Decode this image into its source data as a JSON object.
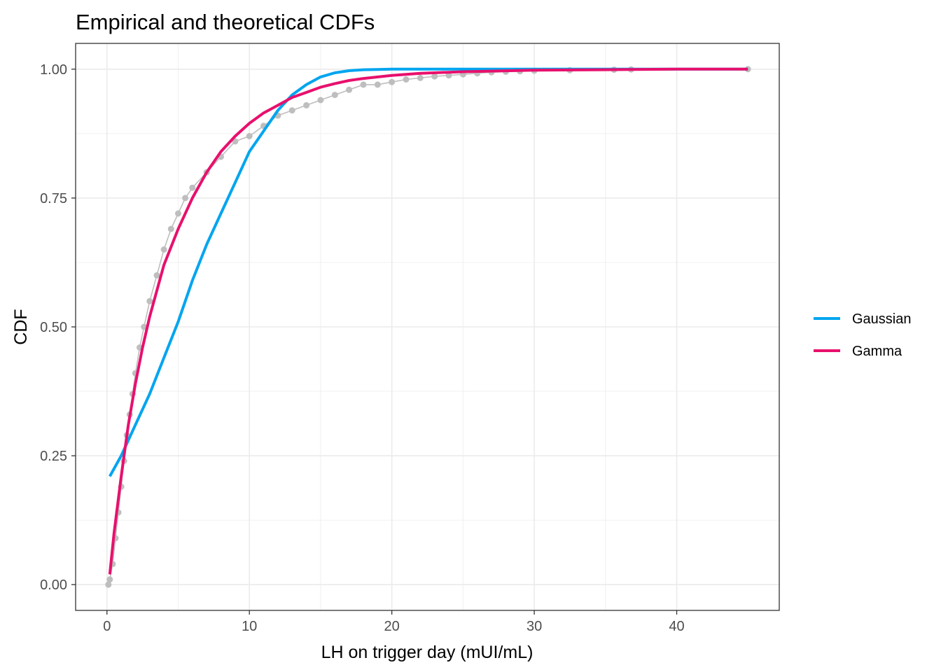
{
  "chart_data": {
    "type": "line",
    "title": "Empirical and theoretical CDFs",
    "xlabel": "LH on trigger day (mUI/mL)",
    "ylabel": "CDF",
    "xlim": [
      -2.2,
      47.2
    ],
    "ylim": [
      -0.05,
      1.05
    ],
    "x_ticks": [
      0,
      10,
      20,
      30,
      40
    ],
    "x_tick_labels": [
      "0",
      "10",
      "20",
      "30",
      "40"
    ],
    "y_ticks": [
      0,
      0.25,
      0.5,
      0.75,
      1.0
    ],
    "y_tick_labels": [
      "0.00",
      "0.25",
      "0.50",
      "0.75",
      "1.00"
    ],
    "grid": true,
    "legend_position": "right",
    "empirical": {
      "color": "#bebebe",
      "points": [
        [
          0.1,
          0.0
        ],
        [
          0.2,
          0.01
        ],
        [
          0.4,
          0.04
        ],
        [
          0.6,
          0.09
        ],
        [
          0.8,
          0.14
        ],
        [
          1.0,
          0.19
        ],
        [
          1.2,
          0.24
        ],
        [
          1.4,
          0.29
        ],
        [
          1.6,
          0.33
        ],
        [
          1.8,
          0.37
        ],
        [
          2.0,
          0.41
        ],
        [
          2.3,
          0.46
        ],
        [
          2.6,
          0.5
        ],
        [
          3.0,
          0.55
        ],
        [
          3.5,
          0.6
        ],
        [
          4.0,
          0.65
        ],
        [
          4.5,
          0.69
        ],
        [
          5.0,
          0.72
        ],
        [
          5.5,
          0.75
        ],
        [
          6.0,
          0.77
        ],
        [
          7.0,
          0.8
        ],
        [
          8.0,
          0.83
        ],
        [
          9.0,
          0.86
        ],
        [
          10.0,
          0.87
        ],
        [
          11.0,
          0.89
        ],
        [
          12.0,
          0.91
        ],
        [
          13.0,
          0.92
        ],
        [
          14.0,
          0.93
        ],
        [
          15.0,
          0.94
        ],
        [
          16.0,
          0.95
        ],
        [
          17.0,
          0.96
        ],
        [
          18.0,
          0.97
        ],
        [
          19.0,
          0.97
        ],
        [
          20.0,
          0.975
        ],
        [
          21.0,
          0.98
        ],
        [
          22.0,
          0.983
        ],
        [
          23.0,
          0.986
        ],
        [
          24.0,
          0.988
        ],
        [
          25.0,
          0.99
        ],
        [
          26.0,
          0.992
        ],
        [
          27.0,
          0.994
        ],
        [
          28.0,
          0.995
        ],
        [
          29.0,
          0.996
        ],
        [
          30.0,
          0.997
        ],
        [
          32.5,
          0.998
        ],
        [
          35.6,
          0.999
        ],
        [
          36.8,
          0.9995
        ],
        [
          45.0,
          1.0
        ]
      ]
    },
    "series": [
      {
        "name": "Gaussian",
        "color": "#00a5ef",
        "x": [
          0.2,
          1,
          2,
          3,
          4,
          5,
          6,
          7,
          8,
          9,
          10,
          11,
          12,
          13,
          14,
          15,
          16,
          17,
          18,
          19,
          20,
          22,
          25,
          30,
          35,
          40,
          45
        ],
        "values": [
          0.21,
          0.25,
          0.31,
          0.37,
          0.44,
          0.51,
          0.59,
          0.66,
          0.72,
          0.78,
          0.84,
          0.88,
          0.92,
          0.95,
          0.97,
          0.985,
          0.993,
          0.997,
          0.999,
          0.9995,
          1.0,
          1.0,
          1.0,
          1.0,
          1.0,
          1.0,
          1.0
        ]
      },
      {
        "name": "Gamma",
        "color": "#e8106d",
        "x": [
          0.2,
          0.5,
          1,
          1.5,
          2,
          2.5,
          3,
          4,
          5,
          6,
          7,
          8,
          9,
          10,
          11,
          12,
          13,
          14,
          15,
          16,
          17,
          18,
          20,
          22,
          25,
          30,
          35,
          40,
          45
        ],
        "values": [
          0.02,
          0.1,
          0.21,
          0.31,
          0.39,
          0.46,
          0.52,
          0.62,
          0.69,
          0.75,
          0.8,
          0.84,
          0.87,
          0.895,
          0.915,
          0.93,
          0.945,
          0.955,
          0.965,
          0.972,
          0.978,
          0.982,
          0.988,
          0.992,
          0.995,
          0.998,
          0.999,
          1.0,
          1.0
        ]
      }
    ]
  }
}
